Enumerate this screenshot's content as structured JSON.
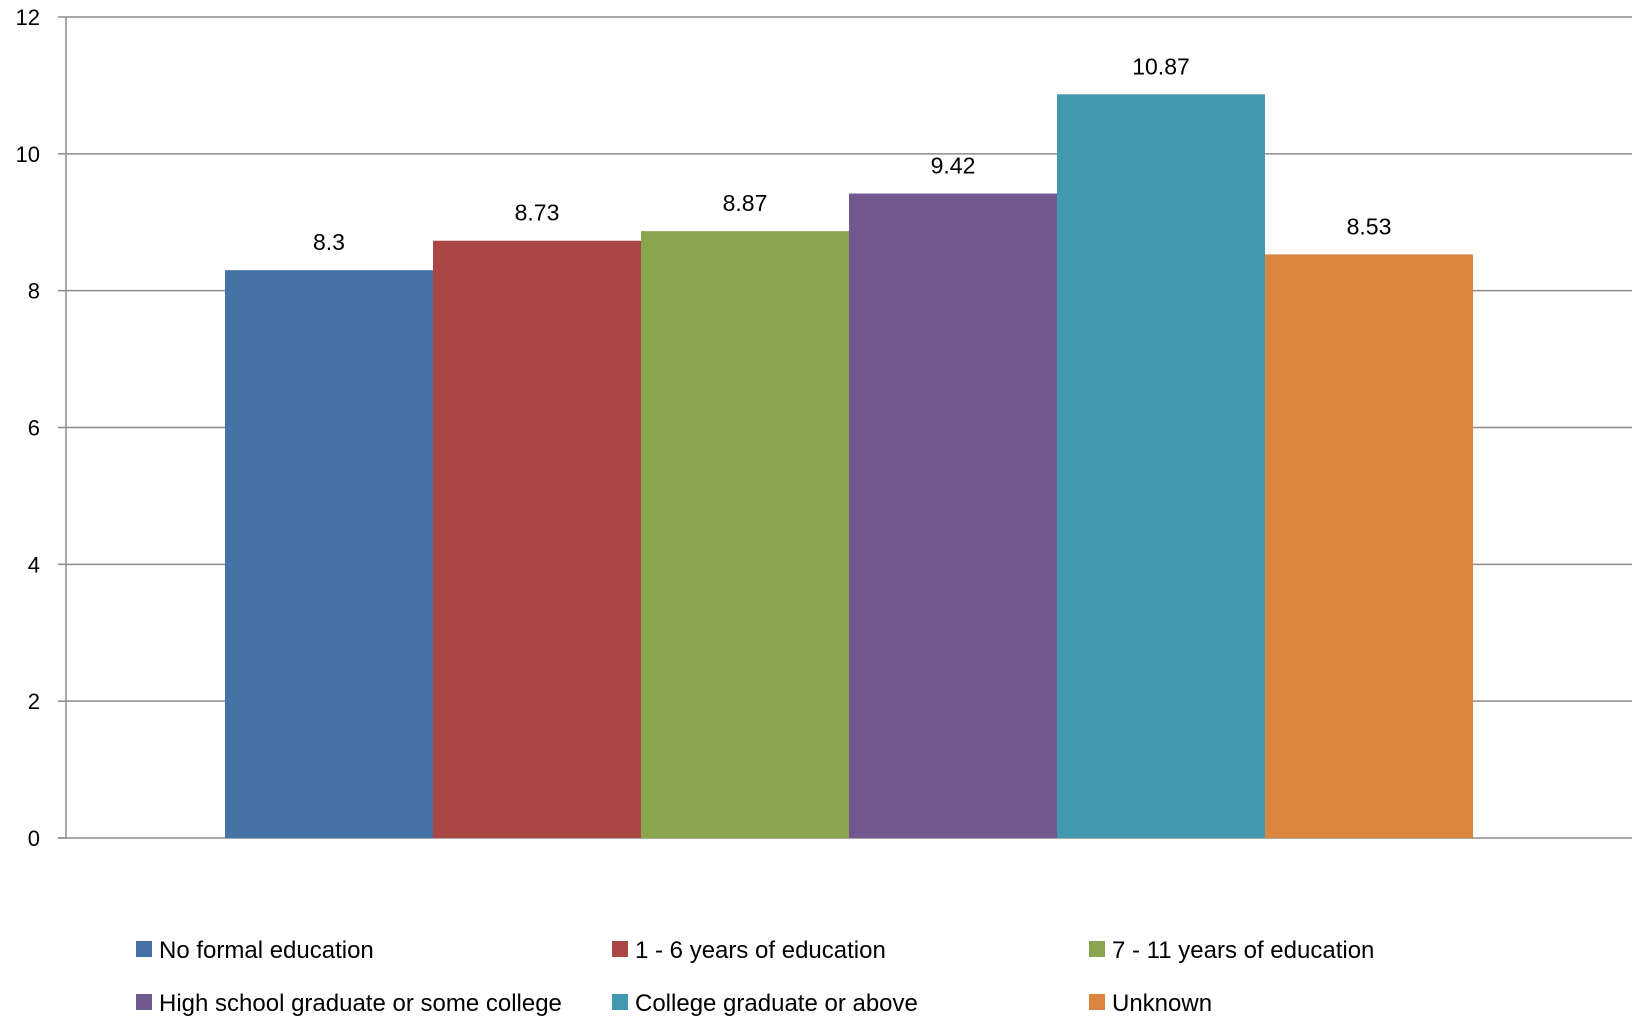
{
  "chart_data": {
    "type": "bar",
    "title": "",
    "xlabel": "",
    "ylabel": "",
    "ylim": [
      0,
      12
    ],
    "yticks": [
      0,
      2,
      4,
      6,
      8,
      10,
      12
    ],
    "grid": true,
    "legend_position": "bottom",
    "series": [
      {
        "name": "No formal education",
        "value": 8.3,
        "label": "8.3",
        "color": "#4572A7"
      },
      {
        "name": "1 - 6 years of education",
        "value": 8.73,
        "label": "8.73",
        "color": "#AA4643"
      },
      {
        "name": "7 - 11 years of education",
        "value": 8.87,
        "label": "8.87",
        "color": "#89A54E"
      },
      {
        "name": "High school graduate or some college",
        "value": 9.42,
        "label": "9.42",
        "color": "#71588F"
      },
      {
        "name": "College graduate or above",
        "value": 10.87,
        "label": "10.87",
        "color": "#4198AF"
      },
      {
        "name": "Unknown",
        "value": 8.53,
        "label": "8.53",
        "color": "#DB843D"
      }
    ]
  }
}
